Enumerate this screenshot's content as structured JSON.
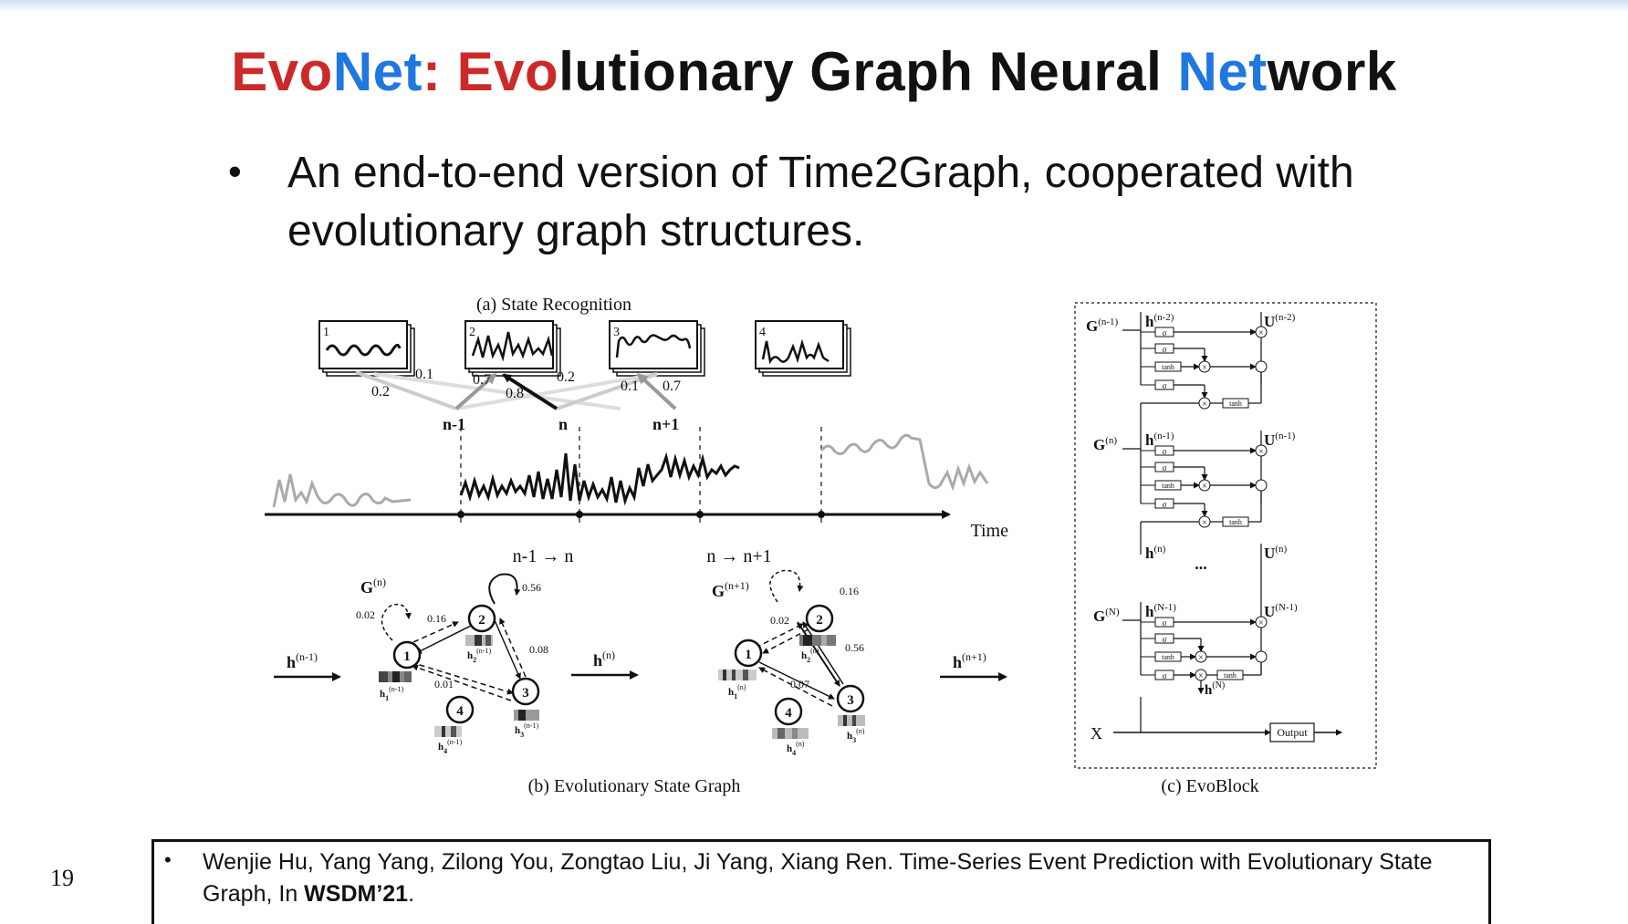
{
  "title": {
    "part1": "Evo",
    "part2": "Net",
    "part3": ": ",
    "part4": "Evo",
    "part5": "lutionary Graph Neural ",
    "part6": "Net",
    "part7": "work"
  },
  "bullet": {
    "text": "An end-to-end version of Time2Graph, cooperated with evolutionary graph structures."
  },
  "diagram": {
    "panel_a": {
      "caption": "(a) State Recognition",
      "states": [
        "1",
        "2",
        "3",
        "4"
      ],
      "weights": [
        "0.1",
        "0.2",
        "0.7",
        "0.8",
        "0.2",
        "0.1",
        "0.7"
      ],
      "segments": [
        "n-1",
        "n",
        "n+1"
      ],
      "axis_label": "Time",
      "transitions": [
        "n-1 → n",
        "n → n+1"
      ]
    },
    "panel_b": {
      "caption": "(b) Evolutionary State Graph",
      "graph1": {
        "title_base": "G",
        "title_sup": "(n)",
        "edges": [
          "0.02",
          "0.16",
          "0.56",
          "0.08",
          "0.01"
        ],
        "nodes": [
          "1",
          "2",
          "3",
          "4"
        ],
        "emb": [
          {
            "base": "h",
            "sub": "1",
            "sup": "(n-1)"
          },
          {
            "base": "h",
            "sub": "2",
            "sup": "(n-1)"
          },
          {
            "base": "h",
            "sub": "3",
            "sup": "(n-1)"
          },
          {
            "base": "h",
            "sub": "4",
            "sup": "(n-1)"
          }
        ]
      },
      "graph2": {
        "title_base": "G",
        "title_sup": "(n+1)",
        "edges": [
          "0.02",
          "0.16",
          "0.56",
          "0.07"
        ],
        "nodes": [
          "1",
          "2",
          "3",
          "4"
        ],
        "emb": [
          {
            "base": "h",
            "sub": "1",
            "sup": "(n)"
          },
          {
            "base": "h",
            "sub": "2",
            "sup": "(n)"
          },
          {
            "base": "h",
            "sub": "3",
            "sup": "(n)"
          },
          {
            "base": "h",
            "sub": "4",
            "sup": "(n)"
          }
        ]
      },
      "arrows": [
        {
          "base": "h",
          "sup": "(n-1)"
        },
        {
          "base": "h",
          "sup": "(n)"
        },
        {
          "base": "h",
          "sup": "(n+1)"
        }
      ]
    },
    "panel_c": {
      "caption": "(c) EvoBlock",
      "gate_sigma": "σ",
      "gate_tanh": "tanh",
      "mult": "×",
      "ellipsis": "...",
      "input_label": "X",
      "output_label": "Output",
      "rows": [
        {
          "g_base": "G",
          "g_sup": "(n-1)",
          "h_base": "h",
          "h_sup": "(n-2)",
          "u_base": "U",
          "u_sup": "(n-2)"
        },
        {
          "g_base": "G",
          "g_sup": "(n)",
          "h_base": "h",
          "h_sup": "(n-1)",
          "u_base": "U",
          "u_sup": "(n-1)"
        },
        {
          "h_base": "h",
          "h_sup": "(n)",
          "u_base": "U",
          "u_sup": "(n)"
        },
        {
          "g_base": "G",
          "g_sup": "(N)",
          "h_base": "h",
          "h_sup": "(N-1)",
          "u_base": "U",
          "u_sup": "(N-1)"
        }
      ],
      "final_h": {
        "base": "h",
        "sup": "(N)"
      }
    }
  },
  "reference": {
    "authors": "Wenjie Hu, Yang Yang, Zilong You, Zongtao Liu, Ji Yang, Xiang Ren. Time-Series Event Prediction with Evolutionary State Graph, In ",
    "venue": "WSDM’21",
    "end": "."
  },
  "page_number": "19"
}
